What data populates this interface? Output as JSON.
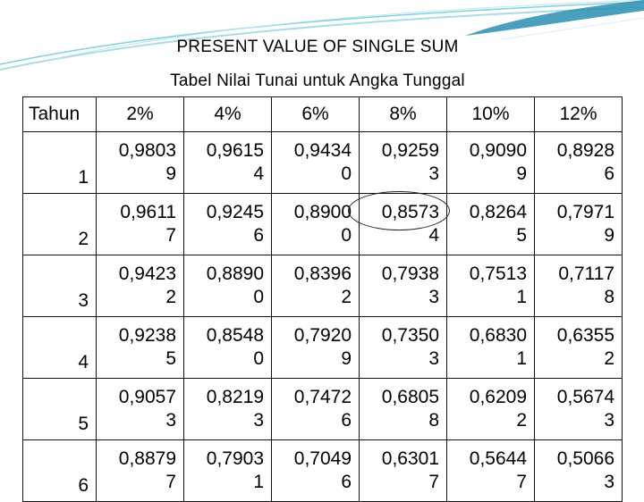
{
  "title": "PRESENT VALUE OF SINGLE SUM",
  "subtitle": "Tabel Nilai Tunai untuk Angka Tunggal",
  "table": {
    "year_header": "Tahun",
    "rate_headers": [
      "2%",
      "4%",
      "6%",
      "8%",
      "10%",
      "12%"
    ],
    "rows": [
      {
        "year": "1",
        "cells": [
          [
            "0,9803",
            "9"
          ],
          [
            "0,9615",
            "4"
          ],
          [
            "0,9434",
            "0"
          ],
          [
            "0,9259",
            "3"
          ],
          [
            "0,9090",
            "9"
          ],
          [
            "0,8928",
            "6"
          ]
        ]
      },
      {
        "year": "2",
        "cells": [
          [
            "0,9611",
            "7"
          ],
          [
            "0,9245",
            "6"
          ],
          [
            "0,8900",
            "0"
          ],
          [
            "0,8573",
            "4"
          ],
          [
            "0,8264",
            "5"
          ],
          [
            "0,7971",
            "9"
          ]
        ]
      },
      {
        "year": "3",
        "cells": [
          [
            "0,9423",
            "2"
          ],
          [
            "0,8890",
            "0"
          ],
          [
            "0,8396",
            "2"
          ],
          [
            "0,7938",
            "3"
          ],
          [
            "0,7513",
            "1"
          ],
          [
            "0,7117",
            "8"
          ]
        ]
      },
      {
        "year": "4",
        "cells": [
          [
            "0,9238",
            "5"
          ],
          [
            "0,8548",
            "0"
          ],
          [
            "0,7920",
            "9"
          ],
          [
            "0,7350",
            "3"
          ],
          [
            "0,6830",
            "1"
          ],
          [
            "0,6355",
            "2"
          ]
        ]
      },
      {
        "year": "5",
        "cells": [
          [
            "0,9057",
            "3"
          ],
          [
            "0,8219",
            "3"
          ],
          [
            "0,7472",
            "6"
          ],
          [
            "0,6805",
            "8"
          ],
          [
            "0,6209",
            "2"
          ],
          [
            "0,5674",
            "3"
          ]
        ]
      },
      {
        "year": "6",
        "cells": [
          [
            "0,8879",
            "7"
          ],
          [
            "0,7903",
            "1"
          ],
          [
            "0,7049",
            "6"
          ],
          [
            "0,6301",
            "7"
          ],
          [
            "0,5644",
            "7"
          ],
          [
            "0,5066",
            "3"
          ]
        ]
      }
    ]
  },
  "highlight": {
    "row_year": "2",
    "rate": "8%"
  },
  "colors": {
    "swoosh": "#7fd0e0",
    "swoosh_dark": "#2a8fb0",
    "text": "#000000"
  }
}
